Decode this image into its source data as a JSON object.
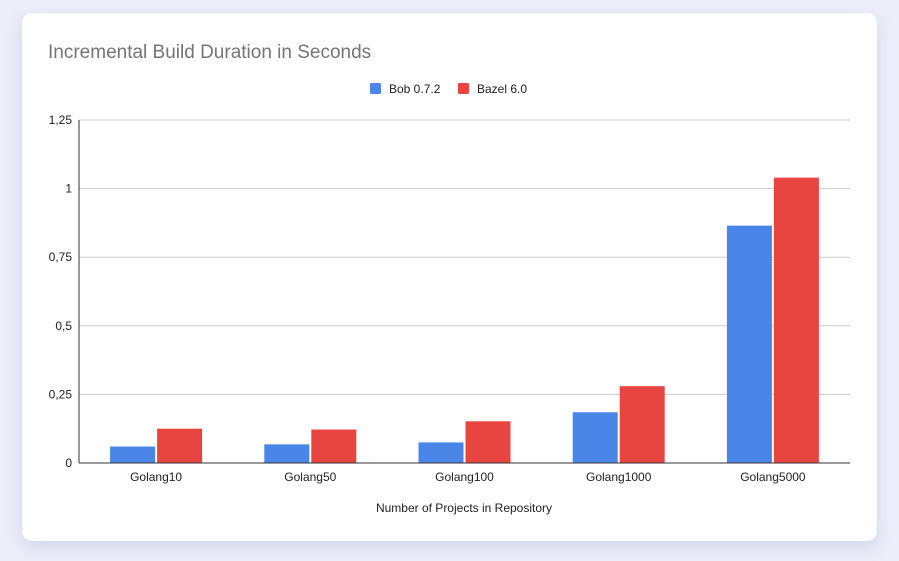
{
  "colors": {
    "background": "#eceef9",
    "card": "#ffffff",
    "series_blue": "#4a86e8",
    "series_red": "#e84440",
    "grid": "#cccccc",
    "axis": "#333333",
    "title": "#757575",
    "text": "#222222"
  },
  "chart_data": {
    "type": "bar",
    "title": "Incremental Build Duration in Seconds",
    "xlabel": "Number of Projects in Repository",
    "ylabel": "",
    "categories": [
      "Golang10",
      "Golang50",
      "Golang100",
      "Golang1000",
      "Golang5000"
    ],
    "series": [
      {
        "name": "Bob 0.7.2",
        "color": "#4a86e8",
        "values": [
          0.06,
          0.068,
          0.075,
          0.185,
          0.865
        ]
      },
      {
        "name": "Bazel 6.0",
        "color": "#e84440",
        "values": [
          0.125,
          0.122,
          0.152,
          0.28,
          1.04
        ]
      }
    ],
    "ylim": [
      0,
      1.25
    ],
    "yticks": [
      0,
      0.25,
      0.5,
      0.75,
      1,
      1.25
    ],
    "ytick_labels": [
      "0",
      "0,25",
      "0,5",
      "0,75",
      "1",
      "1,25"
    ],
    "grid": true,
    "legend_position": "top-center"
  }
}
